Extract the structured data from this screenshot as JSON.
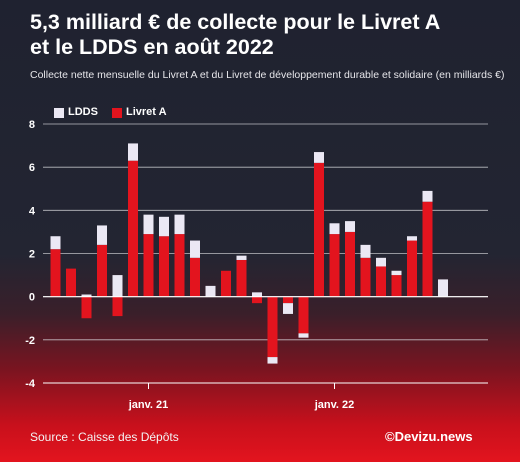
{
  "title_line1": "5,3 milliard € de collecte pour le Livret A",
  "title_line2": "et le LDDS en août 2022",
  "subtitle": "Collecte nette mensuelle du Livret A et du Livret de développement durable et solidaire (en milliards €)",
  "source": "Source : Caisse des Dépôts",
  "brand": "©Devizu.news",
  "colors": {
    "livret_a": "#e3141e",
    "ldds": "#ebe8f4",
    "grid": "#d8d8dc"
  },
  "chart_data": {
    "type": "bar",
    "stacked": true,
    "ylim": [
      -4,
      8
    ],
    "yticks": [
      8,
      6,
      4,
      2,
      0,
      -2,
      -4
    ],
    "grid": true,
    "legend_position": "top-left",
    "x_tick_labels": [
      {
        "label": "janv. 21",
        "index": 6
      },
      {
        "label": "janv. 22",
        "index": 18
      }
    ],
    "series": [
      {
        "name": "LDDS",
        "color": "#ebe8f4",
        "values": [
          0.6,
          0.0,
          0.1,
          0.9,
          1.0,
          0.8,
          0.9,
          0.9,
          0.9,
          0.8,
          0.5,
          0.0,
          0.2,
          0.2,
          -0.3,
          -0.5,
          -0.2,
          0.5,
          0.5,
          0.5,
          0.6,
          0.4,
          0.2,
          0.2,
          0.5,
          0.8
        ]
      },
      {
        "name": "Livret A",
        "color": "#e3141e",
        "values": [
          2.2,
          1.3,
          -1.0,
          2.4,
          -0.9,
          6.3,
          2.9,
          2.8,
          2.9,
          1.8,
          0.0,
          1.2,
          1.7,
          -0.3,
          -2.8,
          -0.3,
          -1.7,
          6.2,
          2.9,
          3.0,
          1.8,
          1.4,
          1.0,
          2.6,
          4.4,
          0.0
        ]
      }
    ]
  }
}
